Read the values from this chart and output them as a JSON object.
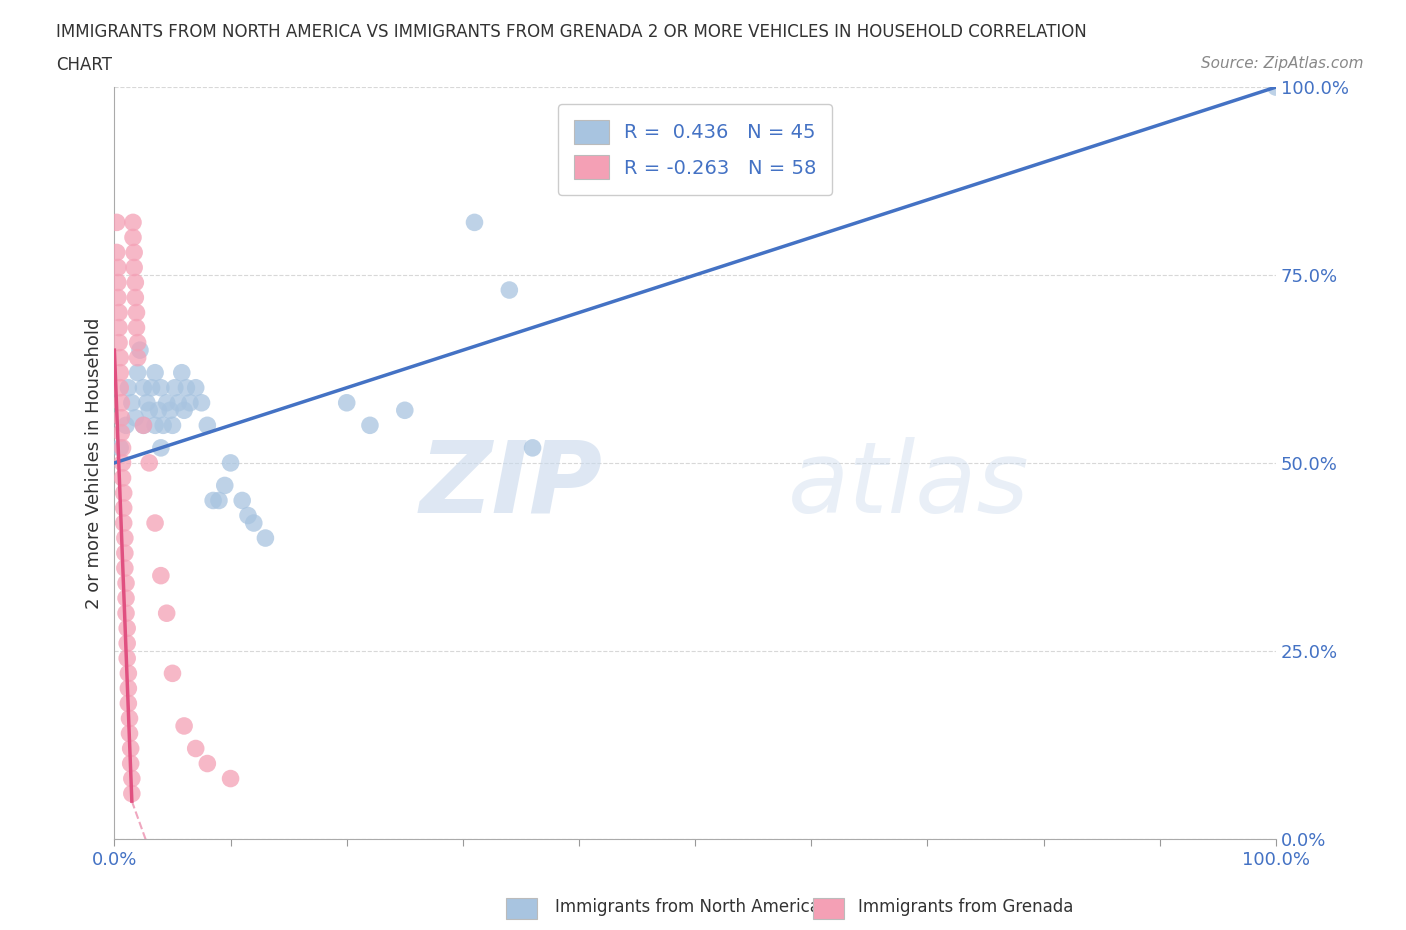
{
  "title_line1": "IMMIGRANTS FROM NORTH AMERICA VS IMMIGRANTS FROM GRENADA 2 OR MORE VEHICLES IN HOUSEHOLD CORRELATION",
  "title_line2": "CHART",
  "source": "Source: ZipAtlas.com",
  "ylabel": "2 or more Vehicles in Household",
  "watermark": "ZIPatlas",
  "legend_label1": "Immigrants from North America",
  "legend_label2": "Immigrants from Grenada",
  "R1": 0.436,
  "N1": 45,
  "R2": -0.263,
  "N2": 58,
  "blue_color": "#a8c4e0",
  "pink_color": "#f4a0b5",
  "blue_line_color": "#4472c4",
  "pink_line_color": "#e05080",
  "axis_label_color": "#4472c4",
  "blue_scatter": [
    [
      0.005,
      0.52
    ],
    [
      0.01,
      0.55
    ],
    [
      0.012,
      0.6
    ],
    [
      0.015,
      0.58
    ],
    [
      0.018,
      0.56
    ],
    [
      0.02,
      0.62
    ],
    [
      0.022,
      0.65
    ],
    [
      0.025,
      0.6
    ],
    [
      0.025,
      0.55
    ],
    [
      0.028,
      0.58
    ],
    [
      0.03,
      0.57
    ],
    [
      0.032,
      0.6
    ],
    [
      0.035,
      0.62
    ],
    [
      0.035,
      0.55
    ],
    [
      0.038,
      0.57
    ],
    [
      0.04,
      0.6
    ],
    [
      0.04,
      0.52
    ],
    [
      0.042,
      0.55
    ],
    [
      0.045,
      0.58
    ],
    [
      0.048,
      0.57
    ],
    [
      0.05,
      0.55
    ],
    [
      0.052,
      0.6
    ],
    [
      0.055,
      0.58
    ],
    [
      0.058,
      0.62
    ],
    [
      0.06,
      0.57
    ],
    [
      0.062,
      0.6
    ],
    [
      0.065,
      0.58
    ],
    [
      0.07,
      0.6
    ],
    [
      0.075,
      0.58
    ],
    [
      0.08,
      0.55
    ],
    [
      0.085,
      0.45
    ],
    [
      0.09,
      0.45
    ],
    [
      0.095,
      0.47
    ],
    [
      0.1,
      0.5
    ],
    [
      0.11,
      0.45
    ],
    [
      0.115,
      0.43
    ],
    [
      0.12,
      0.42
    ],
    [
      0.13,
      0.4
    ],
    [
      0.2,
      0.58
    ],
    [
      0.22,
      0.55
    ],
    [
      0.25,
      0.57
    ],
    [
      0.31,
      0.82
    ],
    [
      0.34,
      0.73
    ],
    [
      0.36,
      0.52
    ],
    [
      1.0,
      1.0
    ]
  ],
  "pink_scatter": [
    [
      0.002,
      0.82
    ],
    [
      0.002,
      0.78
    ],
    [
      0.003,
      0.76
    ],
    [
      0.003,
      0.74
    ],
    [
      0.003,
      0.72
    ],
    [
      0.004,
      0.7
    ],
    [
      0.004,
      0.68
    ],
    [
      0.004,
      0.66
    ],
    [
      0.005,
      0.64
    ],
    [
      0.005,
      0.62
    ],
    [
      0.005,
      0.6
    ],
    [
      0.006,
      0.58
    ],
    [
      0.006,
      0.56
    ],
    [
      0.006,
      0.54
    ],
    [
      0.007,
      0.52
    ],
    [
      0.007,
      0.5
    ],
    [
      0.007,
      0.48
    ],
    [
      0.008,
      0.46
    ],
    [
      0.008,
      0.44
    ],
    [
      0.008,
      0.42
    ],
    [
      0.009,
      0.4
    ],
    [
      0.009,
      0.38
    ],
    [
      0.009,
      0.36
    ],
    [
      0.01,
      0.34
    ],
    [
      0.01,
      0.32
    ],
    [
      0.01,
      0.3
    ],
    [
      0.011,
      0.28
    ],
    [
      0.011,
      0.26
    ],
    [
      0.011,
      0.24
    ],
    [
      0.012,
      0.22
    ],
    [
      0.012,
      0.2
    ],
    [
      0.012,
      0.18
    ],
    [
      0.013,
      0.16
    ],
    [
      0.013,
      0.14
    ],
    [
      0.014,
      0.12
    ],
    [
      0.014,
      0.1
    ],
    [
      0.015,
      0.08
    ],
    [
      0.015,
      0.06
    ],
    [
      0.016,
      0.82
    ],
    [
      0.016,
      0.8
    ],
    [
      0.017,
      0.78
    ],
    [
      0.017,
      0.76
    ],
    [
      0.018,
      0.74
    ],
    [
      0.018,
      0.72
    ],
    [
      0.019,
      0.7
    ],
    [
      0.019,
      0.68
    ],
    [
      0.02,
      0.66
    ],
    [
      0.02,
      0.64
    ],
    [
      0.025,
      0.55
    ],
    [
      0.03,
      0.5
    ],
    [
      0.035,
      0.42
    ],
    [
      0.04,
      0.35
    ],
    [
      0.045,
      0.3
    ],
    [
      0.05,
      0.22
    ],
    [
      0.06,
      0.15
    ],
    [
      0.07,
      0.12
    ],
    [
      0.08,
      0.1
    ],
    [
      0.1,
      0.08
    ]
  ],
  "blue_line": [
    [
      0.0,
      0.5
    ],
    [
      1.0,
      1.0
    ]
  ],
  "pink_line_solid": [
    [
      0.0,
      0.65
    ],
    [
      0.015,
      0.05
    ]
  ],
  "pink_line_dashed": [
    [
      0.015,
      0.05
    ],
    [
      0.12,
      -0.4
    ]
  ],
  "xlim": [
    0.0,
    1.0
  ],
  "ylim": [
    0.0,
    1.0
  ],
  "xticks": [
    0.0,
    0.1,
    0.2,
    0.3,
    0.4,
    0.5,
    0.6,
    0.7,
    0.8,
    0.9,
    1.0
  ],
  "xtick_labels_sparse": {
    "0.0": "0.0%",
    "1.0": "100.0%"
  },
  "ytick_values": [
    0.0,
    0.25,
    0.5,
    0.75,
    1.0
  ],
  "ytick_labels": [
    "0.0%",
    "25.0%",
    "50.0%",
    "75.0%",
    "100.0%"
  ],
  "grid_color": "#d8d8d8",
  "background_color": "#ffffff"
}
